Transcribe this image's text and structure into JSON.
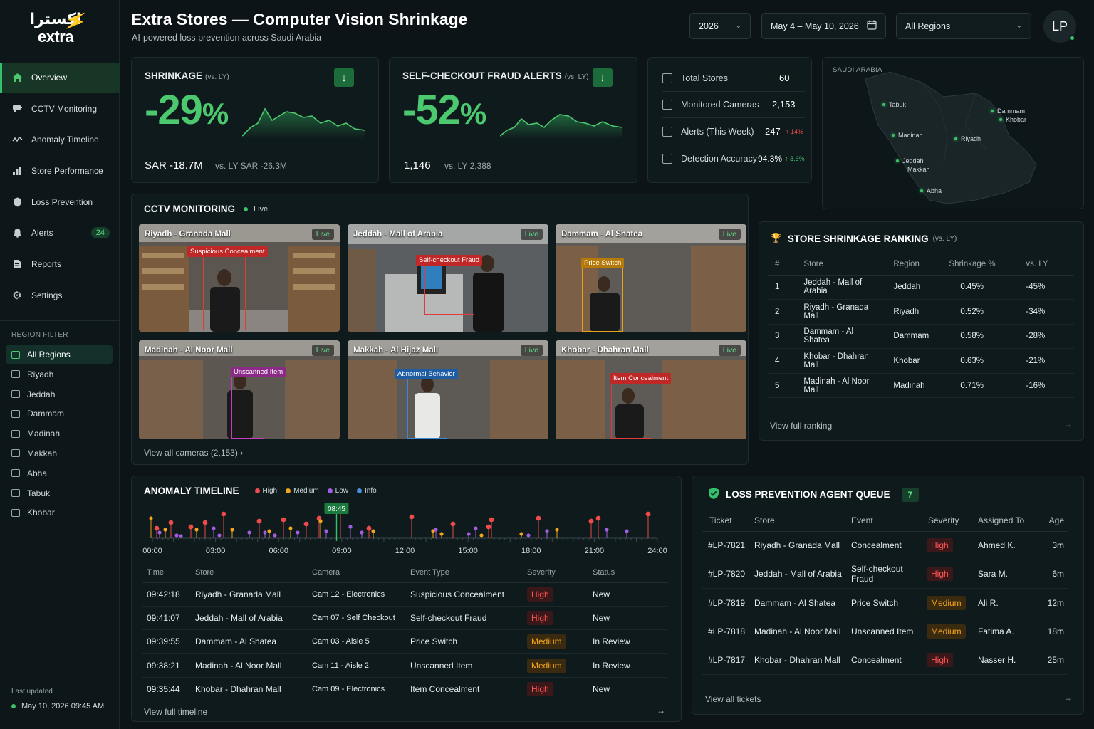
{
  "brand": {
    "arabic": "اكسترا",
    "latin": "extra"
  },
  "header": {
    "title": "Extra Stores — Computer Vision Shrinkage",
    "subtitle": "AI-powered loss prevention across Saudi Arabia",
    "year": "2026",
    "date_range": "May 4 – May 10, 2026",
    "region_select": "All Regions",
    "avatar": "LP"
  },
  "sidebar": {
    "items": [
      {
        "label": "Overview",
        "icon": "home-icon"
      },
      {
        "label": "CCTV Monitoring",
        "icon": "cctv-icon"
      },
      {
        "label": "Anomaly Timeline",
        "icon": "pulse-icon"
      },
      {
        "label": "Store Performance",
        "icon": "bar-chart-icon"
      },
      {
        "label": "Loss Prevention",
        "icon": "shield-icon"
      },
      {
        "label": "Alerts",
        "icon": "bell-icon",
        "badge": "24"
      },
      {
        "label": "Reports",
        "icon": "document-icon"
      },
      {
        "label": "Settings",
        "icon": "gear-icon"
      }
    ],
    "region_filter_title": "REGION FILTER",
    "regions": [
      "All Regions",
      "Riyadh",
      "Jeddah",
      "Dammam",
      "Madinah",
      "Makkah",
      "Abha",
      "Tabuk",
      "Khobar"
    ],
    "last_updated_label": "Last updated",
    "last_updated_value": "May 10, 2026 09:45 AM"
  },
  "kpi_shrinkage": {
    "title": "SHRINKAGE",
    "qualifier": "(vs. LY)",
    "value": "-29",
    "unit": "%",
    "amount": "SAR -18.7M",
    "compare": "vs. LY SAR -26.3M"
  },
  "kpi_fraud": {
    "title": "SELF-CHECKOUT FRAUD ALERTS",
    "qualifier": "(vs. LY)",
    "value": "-52",
    "unit": "%",
    "amount": "1,146",
    "compare": "vs. LY 2,388"
  },
  "stats": [
    {
      "label": "Total Stores",
      "value": "60",
      "change": ""
    },
    {
      "label": "Monitored Cameras",
      "value": "2,153",
      "change": ""
    },
    {
      "label": "Alerts (This Week)",
      "value": "247",
      "change": "↑ 14%"
    },
    {
      "label": "Detection Accuracy",
      "value": "94.3%",
      "change": "↑ 3.6%"
    }
  ],
  "map": {
    "label": "SAUDI ARABIA",
    "cities": [
      "Tabuk",
      "Dammam",
      "Khobar",
      "Madinah",
      "Riyadh",
      "Jeddah",
      "Makkah",
      "Abha"
    ]
  },
  "cctv": {
    "title": "CCTV MONITORING",
    "live_label": "Live",
    "cameras": [
      {
        "name": "Riyadh - Granada Mall",
        "live": "Live",
        "tag": "Suspicious Concealment"
      },
      {
        "name": "Jeddah - Mall of Arabia",
        "live": "Live",
        "tag": "Self-checkout Fraud"
      },
      {
        "name": "Dammam - Al Shatea",
        "live": "Live",
        "tag": "Price Switch"
      },
      {
        "name": "Madinah - Al Noor Mall",
        "live": "Live",
        "tag": "Unscanned Item"
      },
      {
        "name": "Makkah - Al Hijaz Mall",
        "live": "Live",
        "tag": "Abnormal Behavior"
      },
      {
        "name": "Khobar - Dhahran Mall",
        "live": "Live",
        "tag": "Item Concealment"
      }
    ],
    "view_all": "View all cameras (2,153)"
  },
  "ranking": {
    "title": "STORE SHRINKAGE RANKING",
    "qualifier": "(vs. LY)",
    "columns": [
      "#",
      "Store",
      "Region",
      "Shrinkage %",
      "vs. LY"
    ],
    "rows": [
      [
        "1",
        "Jeddah - Mall of Arabia",
        "Jeddah",
        "0.45%",
        "-45%"
      ],
      [
        "2",
        "Riyadh - Granada Mall",
        "Riyadh",
        "0.52%",
        "-34%"
      ],
      [
        "3",
        "Dammam - Al Shatea",
        "Dammam",
        "0.58%",
        "-28%"
      ],
      [
        "4",
        "Khobar - Dhahran Mall",
        "Khobar",
        "0.63%",
        "-21%"
      ],
      [
        "5",
        "Madinah - Al Noor Mall",
        "Madinah",
        "0.71%",
        "-16%"
      ]
    ],
    "view_full": "View full ranking"
  },
  "timeline": {
    "title": "ANOMALY TIMELINE",
    "legend": [
      {
        "label": "High",
        "color": "#ef4b4b"
      },
      {
        "label": "Medium",
        "color": "#f2a41b"
      },
      {
        "label": "Low",
        "color": "#a35ee0"
      },
      {
        "label": "Info",
        "color": "#4a8fe0"
      }
    ],
    "marker": "08:45",
    "ticks": [
      "00:00",
      "03:00",
      "06:00",
      "09:00",
      "12:00",
      "15:00",
      "18:00",
      "21:00",
      "24:00"
    ],
    "columns": [
      "Time",
      "Store",
      "Camera",
      "Event Type",
      "Severity",
      "Status"
    ],
    "rows": [
      [
        "09:42:18",
        "Riyadh - Granada Mall",
        "Cam 12 - Electronics",
        "Suspicious Concealment",
        "High",
        "New"
      ],
      [
        "09:41:07",
        "Jeddah - Mall of Arabia",
        "Cam 07 - Self Checkout",
        "Self-checkout Fraud",
        "High",
        "New"
      ],
      [
        "09:39:55",
        "Dammam - Al Shatea",
        "Cam 03 - Aisle 5",
        "Price Switch",
        "Medium",
        "In Review"
      ],
      [
        "09:38:21",
        "Madinah - Al Noor Mall",
        "Cam 11 - Aisle 2",
        "Unscanned Item",
        "Medium",
        "In Review"
      ],
      [
        "09:35:44",
        "Khobar - Dhahran Mall",
        "Cam 09 - Electronics",
        "Item Concealment",
        "High",
        "New"
      ]
    ],
    "view_full": "View full timeline"
  },
  "queue": {
    "title": "LOSS PREVENTION AGENT QUEUE",
    "count": "7",
    "columns": [
      "Ticket",
      "Store",
      "Event",
      "Severity",
      "Assigned To",
      "Age"
    ],
    "rows": [
      [
        "#LP-7821",
        "Riyadh - Granada Mall",
        "Concealment",
        "High",
        "Ahmed K.",
        "3m"
      ],
      [
        "#LP-7820",
        "Jeddah - Mall of Arabia",
        "Self-checkout Fraud",
        "High",
        "Sara M.",
        "6m"
      ],
      [
        "#LP-7819",
        "Dammam - Al Shatea",
        "Price Switch",
        "Medium",
        "Ali R.",
        "12m"
      ],
      [
        "#LP-7818",
        "Madinah - Al Noor Mall",
        "Unscanned Item",
        "Medium",
        "Fatima A.",
        "18m"
      ],
      [
        "#LP-7817",
        "Khobar - Dhahran Mall",
        "Concealment",
        "High",
        "Nasser H.",
        "25m"
      ]
    ],
    "view_all": "View all tickets"
  }
}
